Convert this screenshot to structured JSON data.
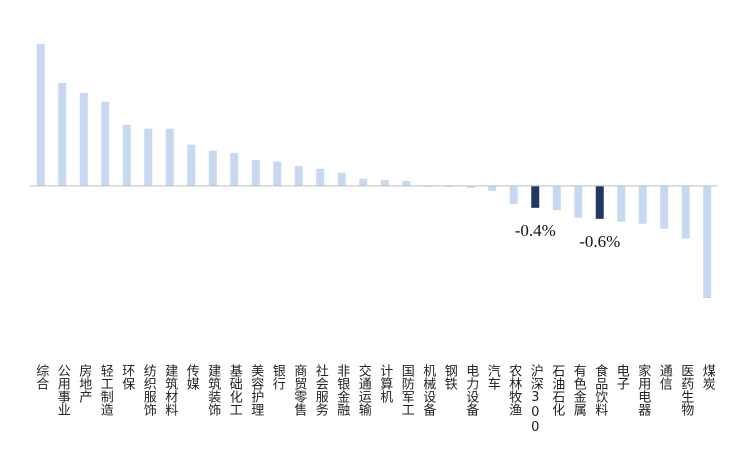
{
  "chart_data": {
    "type": "bar",
    "categories": [
      "综合",
      "公用事业",
      "房地产",
      "轻工制造",
      "环保",
      "纺织服饰",
      "建筑材料",
      "传媒",
      "建筑装饰",
      "基础化工",
      "美容护理",
      "银行",
      "商贸零售",
      "社会服务",
      "非银金融",
      "交通运输",
      "计算机",
      "国防军工",
      "机械设备",
      "钢铁",
      "电力设备",
      "汽车",
      "农林牧渔",
      "沪深300",
      "石油石化",
      "有色金属",
      "食品饮料",
      "电子",
      "家用电器",
      "通信",
      "医药生物",
      "煤炭"
    ],
    "values": [
      2.58,
      1.87,
      1.69,
      1.53,
      1.11,
      1.04,
      1.04,
      0.75,
      0.64,
      0.6,
      0.47,
      0.44,
      0.36,
      0.31,
      0.24,
      0.13,
      0.11,
      0.09,
      -0.02,
      -0.02,
      -0.04,
      -0.09,
      -0.33,
      -0.4,
      -0.44,
      -0.58,
      -0.6,
      -0.65,
      -0.69,
      -0.78,
      -0.96,
      -2.04
    ],
    "value_labels": [
      null,
      null,
      null,
      null,
      null,
      null,
      null,
      null,
      null,
      null,
      null,
      null,
      null,
      null,
      null,
      null,
      null,
      null,
      null,
      null,
      null,
      null,
      null,
      "-0.4%",
      null,
      null,
      "-0.6%",
      null,
      null,
      null,
      null,
      null
    ],
    "colors": [
      "#c6d9f1",
      "#c6d9f1",
      "#c6d9f1",
      "#c6d9f1",
      "#c6d9f1",
      "#c6d9f1",
      "#c6d9f1",
      "#c6d9f1",
      "#c6d9f1",
      "#c6d9f1",
      "#c6d9f1",
      "#c6d9f1",
      "#c6d9f1",
      "#c6d9f1",
      "#c6d9f1",
      "#c6d9f1",
      "#c6d9f1",
      "#c6d9f1",
      "#c6d9f1",
      "#c6d9f1",
      "#c6d9f1",
      "#c6d9f1",
      "#c6d9f1",
      "#1f3864",
      "#c6d9f1",
      "#c6d9f1",
      "#1f3864",
      "#c6d9f1",
      "#c6d9f1",
      "#c6d9f1",
      "#c6d9f1",
      "#c6d9f1"
    ]
  }
}
